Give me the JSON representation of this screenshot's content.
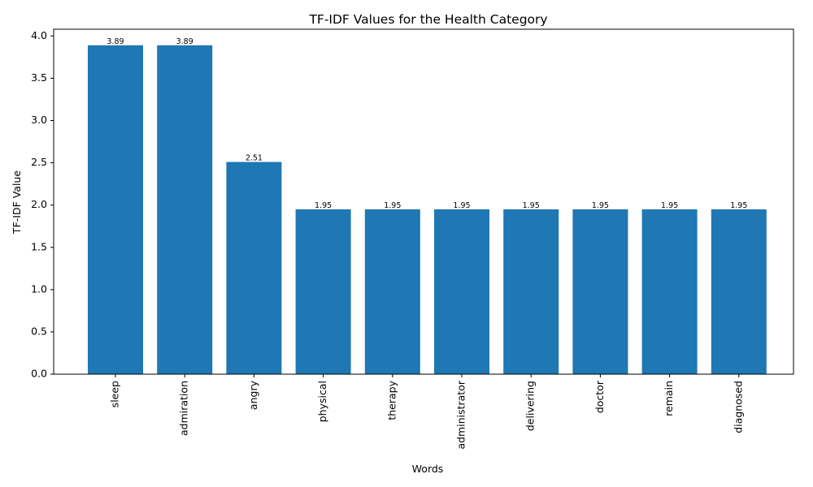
{
  "chart_data": {
    "type": "bar",
    "title": "TF-IDF Values for the Health Category",
    "xlabel": "Words",
    "ylabel": "TF-IDF Value",
    "categories": [
      "sleep",
      "admiration",
      "angry",
      "physical",
      "therapy",
      "administrator",
      "delivering",
      "doctor",
      "remain",
      "diagnosed"
    ],
    "values": [
      3.89,
      3.89,
      2.51,
      1.95,
      1.95,
      1.95,
      1.95,
      1.95,
      1.95,
      1.95
    ],
    "value_labels": [
      "3.89",
      "3.89",
      "2.51",
      "1.95",
      "1.95",
      "1.95",
      "1.95",
      "1.95",
      "1.95",
      "1.95"
    ],
    "ylim": [
      0,
      4.08
    ],
    "yticks": [
      0.0,
      0.5,
      1.0,
      1.5,
      2.0,
      2.5,
      3.0,
      3.5,
      4.0
    ],
    "ytick_labels": [
      "0.0",
      "0.5",
      "1.0",
      "1.5",
      "2.0",
      "2.5",
      "3.0",
      "3.5",
      "4.0"
    ],
    "grid": false,
    "legend": "none",
    "bar_color": "#1f77b4"
  }
}
